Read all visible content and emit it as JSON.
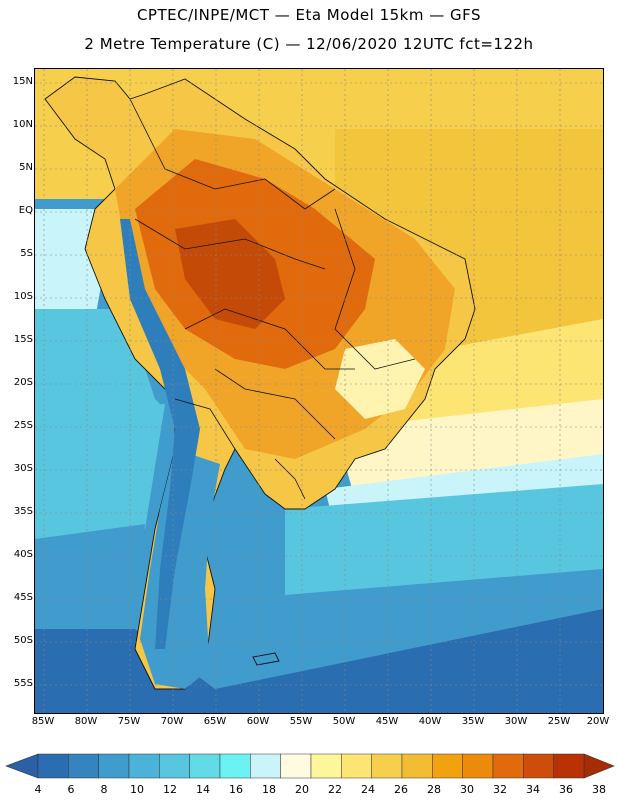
{
  "header": {
    "line1": "CPTEC/INPE/MCT —  Eta Model 15km — GFS",
    "line2": "2 Metre Temperature (C) — 12/06/2020 12UTC fct=122h"
  },
  "axes": {
    "lat_labels": [
      "15N",
      "10N",
      "5N",
      "EQ",
      "5S",
      "10S",
      "15S",
      "20S",
      "25S",
      "30S",
      "35S",
      "40S",
      "45S",
      "50S",
      "55S"
    ],
    "lon_labels": [
      "85W",
      "80W",
      "75W",
      "70W",
      "65W",
      "60W",
      "55W",
      "50W",
      "45W",
      "40W",
      "35W",
      "30W",
      "25W",
      "20W"
    ]
  },
  "colorbar": {
    "labels": [
      "4",
      "6",
      "8",
      "10",
      "12",
      "14",
      "16",
      "18",
      "20",
      "22",
      "24",
      "26",
      "28",
      "30",
      "32",
      "34",
      "36",
      "38"
    ],
    "colors": [
      "#2a6db0",
      "#3583bf",
      "#3f9ccc",
      "#4cb3d8",
      "#59c6df",
      "#62dbe6",
      "#6cf2f2",
      "#c8f4fa",
      "#fffbe0",
      "#fff59a",
      "#fde574",
      "#f6d04c",
      "#f0bd33",
      "#f3a20f",
      "#ec8a0c",
      "#e06a0c",
      "#cf4d0a",
      "#b83206"
    ],
    "left_end_color": "#2b5fa6",
    "right_end_color": "#a82c03"
  },
  "map": {
    "ocean_colors": {
      "tropical_north": "#f6d04c",
      "tropical_atlantic": "#f3c53c",
      "subtropical": "#fde574",
      "warm_pale": "#fff6c8",
      "pale": "#c8f4fa",
      "mid": "#59c6df",
      "cool": "#3f9ccc",
      "cold": "#2a6db0"
    },
    "land_colors": {
      "hot_core": "#c44a08",
      "hot": "#e06a0c",
      "warm": "#f0a528",
      "mild": "#f6c647",
      "pale_highlands": "#fff3b0",
      "patagonia": "#3f9ccc",
      "andes": "#2f7ebc"
    }
  }
}
